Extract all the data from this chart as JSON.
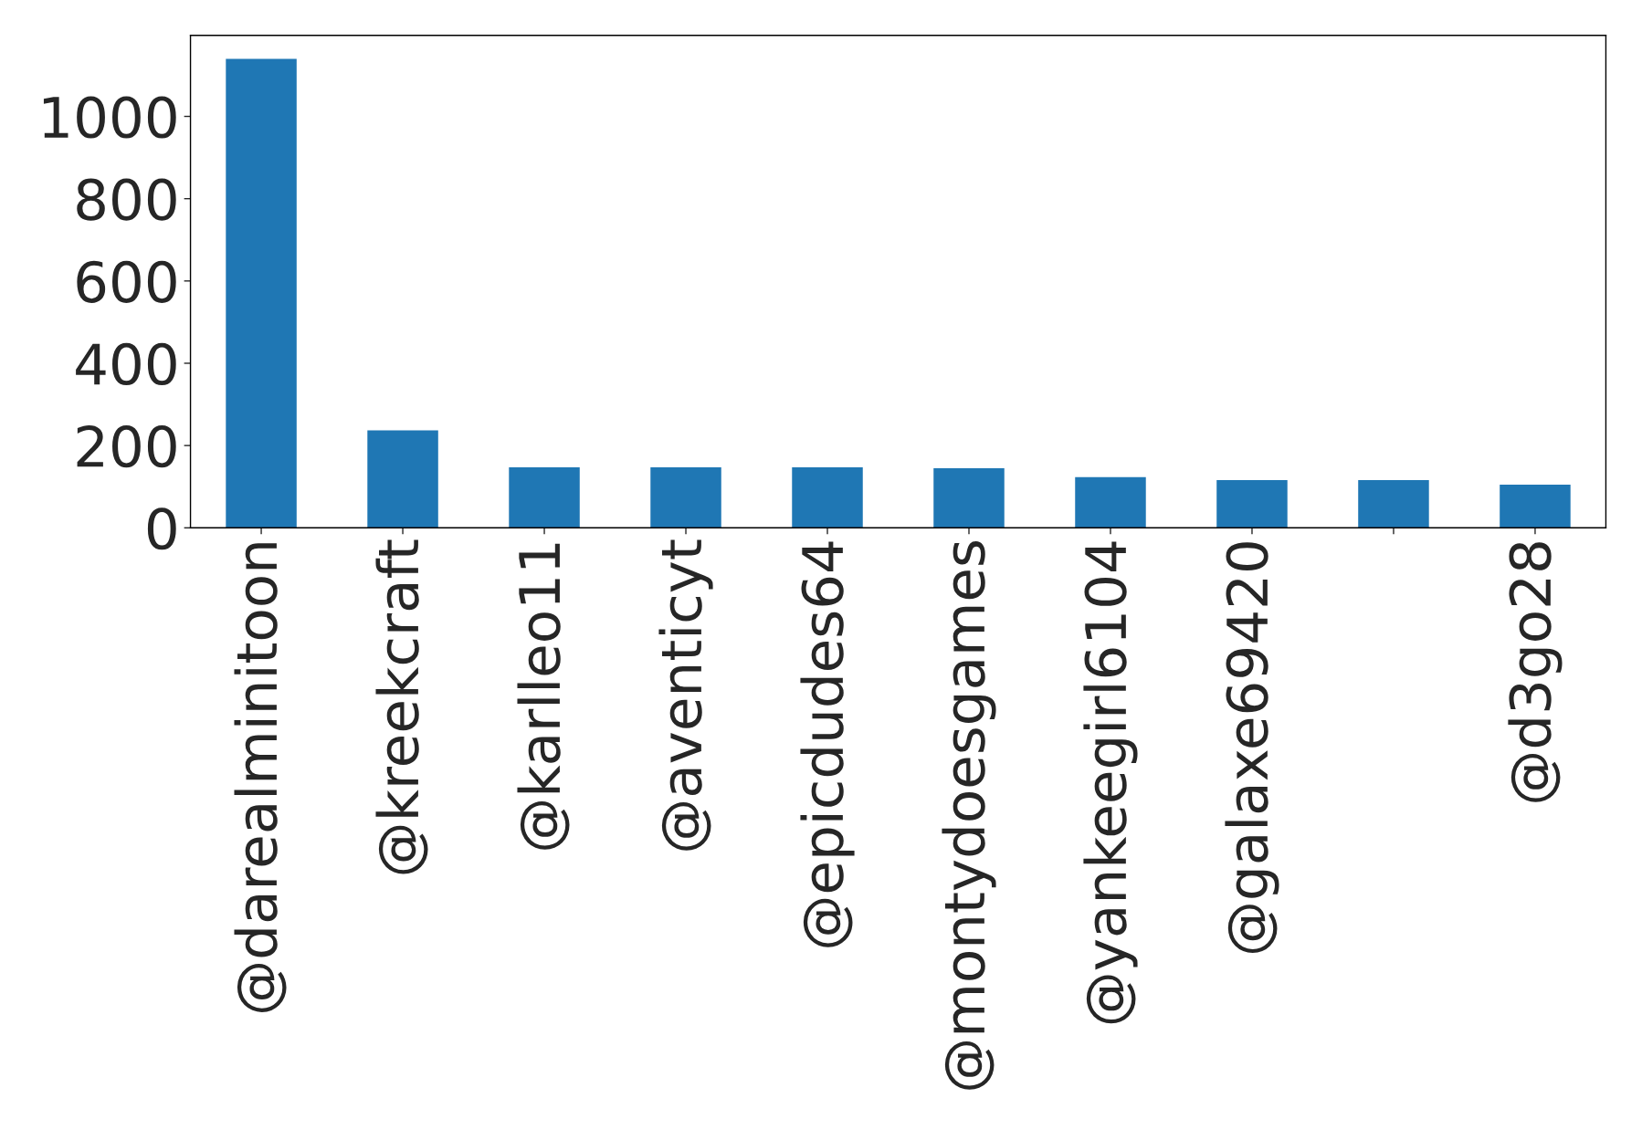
{
  "chart_data": {
    "type": "bar",
    "categories": [
      "@darealminitoon",
      "@kreekcraft",
      "@karlleo11",
      "@aventicyt",
      "@epicdudes64",
      "@montydoesgames",
      "@yankeegirl6104",
      "@galaxe69420",
      null,
      "@d3go28"
    ],
    "values": [
      1140,
      237,
      147,
      147,
      147,
      145,
      123,
      116,
      116,
      105
    ],
    "color": "#1f77b4",
    "ylim": [
      0,
      1197
    ],
    "yticks": [
      0,
      200,
      400,
      600,
      800,
      1000
    ]
  }
}
